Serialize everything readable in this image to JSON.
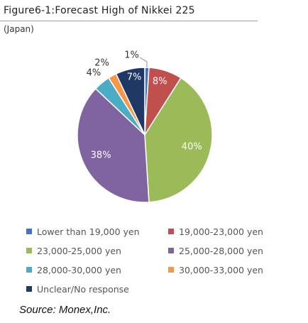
{
  "figure": {
    "title": "Figure6-1:Forecast High of Nikkei 225",
    "subtitle": "(Japan)",
    "source": "Source: Monex,Inc."
  },
  "chart_data": {
    "type": "pie",
    "slices": [
      {
        "label": "Lower than 19,000 yen",
        "value": 1,
        "value_label": "1%",
        "color": "#4472c4"
      },
      {
        "label": "19,000-23,000 yen",
        "value": 8,
        "value_label": "8%",
        "color": "#c0504d"
      },
      {
        "label": "23,000-25,000 yen",
        "value": 40,
        "value_label": "40%",
        "color": "#9bbb59"
      },
      {
        "label": "25,000-28,000 yen",
        "value": 38,
        "value_label": "38%",
        "color": "#8064a2"
      },
      {
        "label": "28,000-30,000 yen",
        "value": 4,
        "value_label": "4%",
        "color": "#4bacc6"
      },
      {
        "label": "30,000-33,000 yen",
        "value": 2,
        "value_label": "2%",
        "color": "#f79646"
      },
      {
        "label": "Unclear/No response",
        "value": 7,
        "value_label": "7%",
        "color": "#1f3864"
      }
    ],
    "legend_position": "bottom"
  }
}
